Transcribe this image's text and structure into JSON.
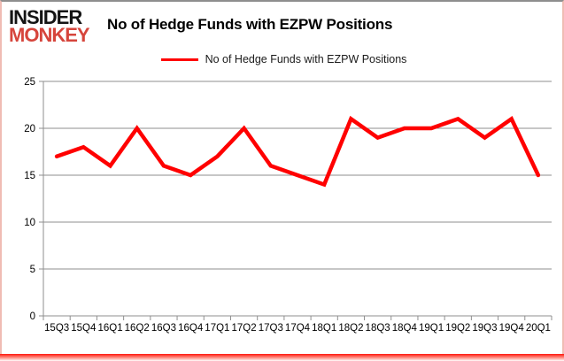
{
  "brand": {
    "line1": "INSIDER",
    "line2": "MONKEY",
    "line1_color": "#141414",
    "line2_color": "#d6453c"
  },
  "header": {
    "title": "No of Hedge Funds with EZPW Positions"
  },
  "legend": {
    "label": "No of Hedge Funds with EZPW Positions",
    "line_color": "#ff0000",
    "position": "top-center"
  },
  "chart_data": {
    "type": "line",
    "title": "No of Hedge Funds with EZPW Positions",
    "categories": [
      "15Q3",
      "15Q4",
      "16Q1",
      "16Q2",
      "16Q3",
      "16Q4",
      "17Q1",
      "17Q2",
      "17Q3",
      "17Q4",
      "18Q1",
      "18Q2",
      "18Q3",
      "18Q4",
      "19Q1",
      "19Q2",
      "19Q3",
      "19Q4",
      "20Q1"
    ],
    "series": [
      {
        "name": "No of Hedge Funds with EZPW Positions",
        "color": "#ff0000",
        "values": [
          17,
          18,
          16,
          20,
          16,
          15,
          17,
          20,
          16,
          15,
          14,
          21,
          19,
          20,
          20,
          21,
          19,
          21,
          15
        ]
      }
    ],
    "xlabel": "",
    "ylabel": "",
    "ylim": [
      0,
      25
    ],
    "yticks": [
      0,
      5,
      10,
      15,
      20,
      25
    ],
    "grid": "horizontal",
    "gridline_color": "#8f8f8f",
    "axis_color": "#8f8f8f",
    "legend_position": "top-center"
  }
}
